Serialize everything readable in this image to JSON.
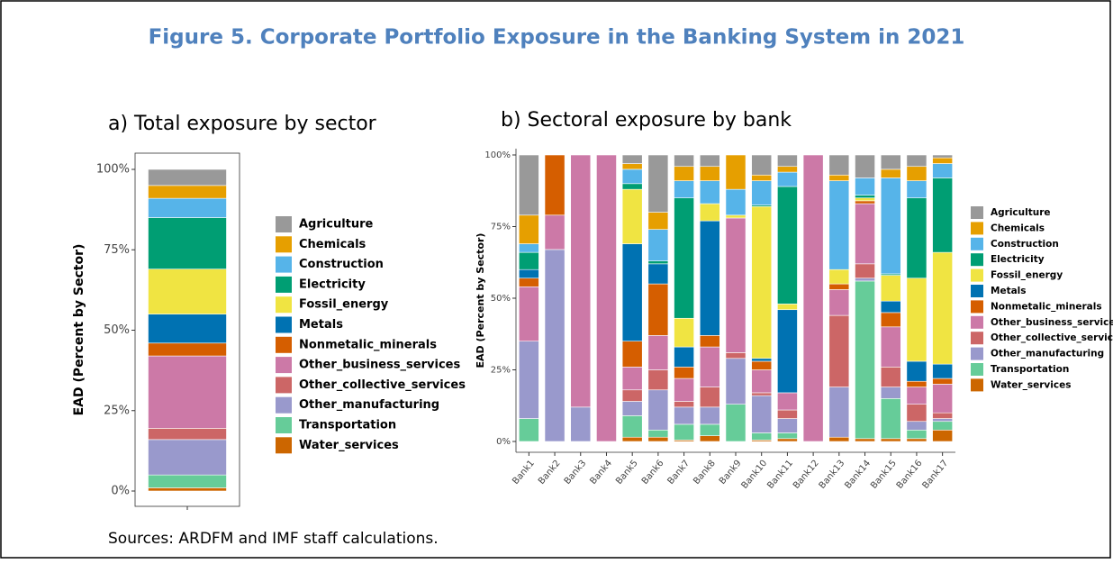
{
  "title": "Figure 5. Corporate Portfolio Exposure in the Banking System in 2021",
  "source": "Sources: ARDFM and IMF staff calculations.",
  "chart_data": [
    {
      "type": "bar",
      "stacked": true,
      "title": "a) Total exposure by sector",
      "ylabel": "EAD (Percent by Sector)",
      "categories": [
        null
      ],
      "ylim": [
        0,
        100
      ],
      "yticks": [
        {
          "value": 0,
          "label": "0%"
        },
        {
          "value": 25,
          "label": "25%"
        },
        {
          "value": 50,
          "label": "50%"
        },
        {
          "value": 75,
          "label": "75%"
        },
        {
          "value": 100,
          "label": "100%"
        }
      ],
      "grid": false,
      "legend": "right",
      "series": [
        {
          "name": "Agriculture",
          "color": "#999999",
          "values": [
            5
          ]
        },
        {
          "name": "Chemicals",
          "color": "#e69f00",
          "values": [
            4
          ]
        },
        {
          "name": "Construction",
          "color": "#56b4e9",
          "values": [
            6
          ]
        },
        {
          "name": "Electricity",
          "color": "#009e73",
          "values": [
            16
          ]
        },
        {
          "name": "Fossil_energy",
          "color": "#f0e442",
          "values": [
            14
          ]
        },
        {
          "name": "Metals",
          "color": "#0072b2",
          "values": [
            9
          ]
        },
        {
          "name": "Nonmetalic_minerals",
          "color": "#d55e00",
          "values": [
            4
          ]
        },
        {
          "name": "Other_business_services",
          "color": "#cc79a7",
          "values": [
            22.5
          ]
        },
        {
          "name": "Other_collective_services",
          "color": "#cc6666",
          "values": [
            3.5
          ]
        },
        {
          "name": "Other_manufacturing",
          "color": "#9999cc",
          "values": [
            11
          ]
        },
        {
          "name": "Transportation",
          "color": "#66cc99",
          "values": [
            4
          ]
        },
        {
          "name": "Water_services",
          "color": "#cc6600",
          "values": [
            1
          ]
        }
      ]
    },
    {
      "type": "bar",
      "stacked": true,
      "title": "b) Sectoral exposure by bank",
      "ylabel": "EAD (Percent by Sector)",
      "categories": [
        "Bank1",
        "Bank2",
        "Bank3",
        "Bank4",
        "Bank5",
        "Bank6",
        "Bank7",
        "Bank8",
        "Bank9",
        "Bank10",
        "Bank11",
        "Bank12",
        "Bank13",
        "Bank14",
        "Bank15",
        "Bank16",
        "Bank17"
      ],
      "ylim": [
        0,
        100
      ],
      "yticks": [
        {
          "value": 0,
          "label": "0%"
        },
        {
          "value": 25,
          "label": "25%"
        },
        {
          "value": 50,
          "label": "50%"
        },
        {
          "value": 75,
          "label": "75%"
        },
        {
          "value": 100,
          "label": "100%"
        }
      ],
      "grid": false,
      "legend": "right",
      "series": [
        {
          "name": "Agriculture",
          "color": "#999999",
          "values": [
            21,
            0,
            0,
            0,
            3,
            20,
            4,
            4,
            0,
            7,
            4,
            0,
            7,
            8,
            5,
            4,
            1
          ]
        },
        {
          "name": "Chemicals",
          "color": "#e69f00",
          "values": [
            10,
            0,
            0,
            0,
            2,
            6,
            5,
            5,
            12,
            2,
            2,
            0,
            2,
            0,
            3,
            5,
            2
          ]
        },
        {
          "name": "Construction",
          "color": "#56b4e9",
          "values": [
            3,
            0,
            0,
            0,
            5,
            11,
            6,
            8,
            9,
            8.5,
            5,
            0,
            31,
            6,
            33.5,
            6,
            5
          ]
        },
        {
          "name": "Electricity",
          "color": "#009e73",
          "values": [
            6,
            0,
            0,
            0,
            2,
            1,
            42,
            0,
            0,
            0.5,
            41,
            0,
            0,
            1,
            0.5,
            28,
            26
          ]
        },
        {
          "name": "Fossil_energy",
          "color": "#f0e442",
          "values": [
            0,
            0,
            0,
            0,
            19,
            0,
            10,
            6,
            1,
            53,
            2,
            0,
            5,
            1,
            9,
            29,
            39
          ]
        },
        {
          "name": "Metals",
          "color": "#0072b2",
          "values": [
            3,
            0,
            0,
            0,
            34,
            7,
            7,
            40,
            0,
            1,
            29,
            0,
            0,
            0,
            4,
            7,
            5
          ]
        },
        {
          "name": "Nonmetalic_minerals",
          "color": "#d55e00",
          "values": [
            3,
            21,
            0,
            0,
            9,
            18,
            4,
            4,
            0,
            3,
            0,
            0,
            2,
            1,
            5,
            2,
            2
          ]
        },
        {
          "name": "Other_business_services",
          "color": "#cc79a7",
          "values": [
            19,
            12,
            88,
            100,
            8,
            12,
            8,
            14,
            47,
            8,
            6,
            100,
            9,
            21,
            14,
            6,
            10
          ]
        },
        {
          "name": "Other_collective_services",
          "color": "#cc6666",
          "values": [
            0,
            0,
            0,
            0,
            4,
            7,
            2,
            7,
            2,
            1,
            3,
            0,
            25,
            5,
            7,
            6,
            2
          ]
        },
        {
          "name": "Other_manufacturing",
          "color": "#9999cc",
          "values": [
            27,
            67,
            12,
            0,
            5,
            14,
            6,
            6,
            16,
            13,
            5,
            0,
            17.5,
            1,
            4,
            3,
            1
          ]
        },
        {
          "name": "Transportation",
          "color": "#66cc99",
          "values": [
            8,
            0,
            0,
            0,
            7.5,
            2.5,
            5.5,
            4,
            13,
            2.5,
            2,
            0,
            0,
            55,
            14,
            3,
            3
          ]
        },
        {
          "name": "Water_services",
          "color": "#cc6600",
          "values": [
            0,
            0,
            0,
            0,
            1.5,
            1.5,
            0.5,
            2,
            0,
            0.5,
            1,
            0,
            1.5,
            1,
            1,
            1,
            4
          ]
        }
      ]
    }
  ]
}
